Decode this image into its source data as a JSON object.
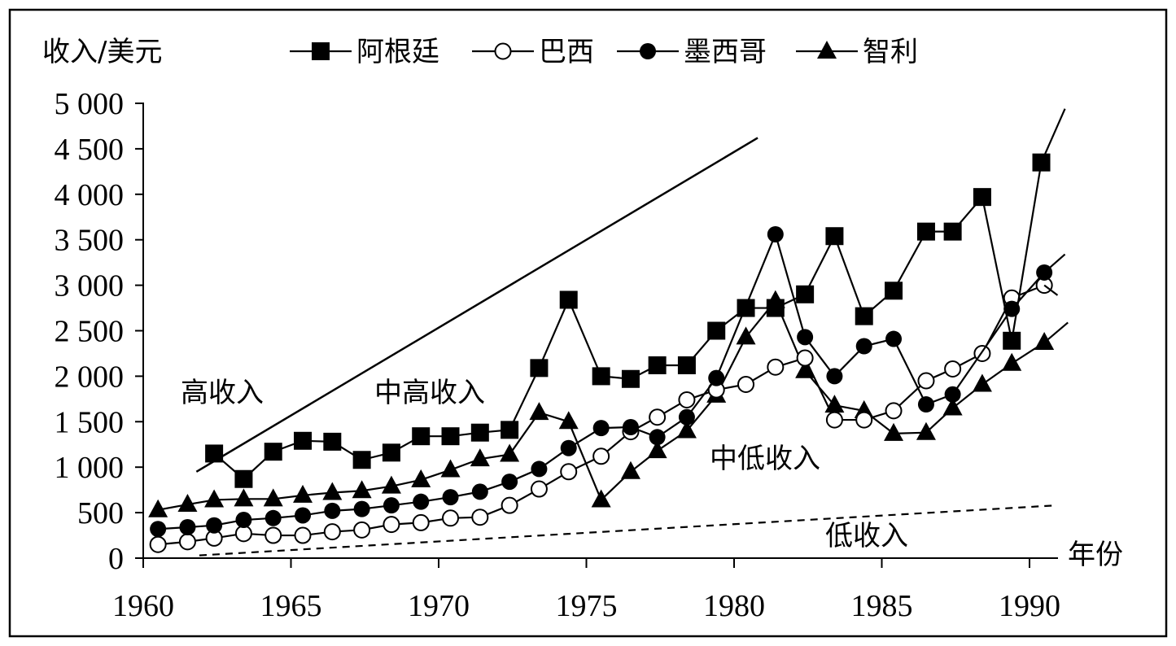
{
  "chart_data": {
    "type": "line",
    "ylabel": "收入/美元",
    "xlabel": "年份",
    "x_ticks": [
      1960,
      1965,
      1970,
      1975,
      1980,
      1985,
      1990
    ],
    "y_ticks": [
      "0",
      "500",
      "1 000",
      "1 500",
      "2 000",
      "2 500",
      "3 000",
      "3 500",
      "4 000",
      "4 500",
      "5 000"
    ],
    "xlim": [
      1960,
      1991.5
    ],
    "ylim": [
      0,
      5000
    ],
    "grid": false,
    "legend_position": "top",
    "series": [
      {
        "name": "阿根廷",
        "marker": "filled-square",
        "x": [
          1962.4,
          1963.4,
          1964.4,
          1965.4,
          1966.4,
          1967.4,
          1968.4,
          1969.4,
          1970.4,
          1971.4,
          1972.4,
          1973.4,
          1974.4,
          1975.5,
          1976.5,
          1977.4,
          1978.4,
          1979.4,
          1980.4,
          1981.4,
          1982.4,
          1983.4,
          1984.4,
          1985.4,
          1986.5,
          1987.4,
          1988.4,
          1989.4,
          1990.4
        ],
        "y": [
          1150,
          870,
          1170,
          1290,
          1280,
          1080,
          1160,
          1340,
          1340,
          1380,
          1410,
          2090,
          2840,
          2000,
          1970,
          2120,
          2120,
          2500,
          2750,
          2750,
          2900,
          3540,
          2660,
          2940,
          3590,
          3590,
          3970,
          2390,
          4350
        ]
      },
      {
        "name": "巴西",
        "marker": "open-circle",
        "x": [
          1960.5,
          1961.5,
          1962.4,
          1963.4,
          1964.4,
          1965.4,
          1966.4,
          1967.4,
          1968.4,
          1969.4,
          1970.4,
          1971.4,
          1972.4,
          1973.4,
          1974.4,
          1975.5,
          1976.5,
          1977.4,
          1978.4,
          1979.4,
          1980.4,
          1981.4,
          1982.4,
          1983.4,
          1984.4,
          1985.4,
          1986.5,
          1987.4,
          1988.4,
          1989.4,
          1990.5
        ],
        "y": [
          150,
          180,
          220,
          270,
          250,
          250,
          290,
          310,
          370,
          390,
          440,
          450,
          580,
          760,
          950,
          1120,
          1390,
          1550,
          1740,
          1850,
          1910,
          2100,
          2200,
          1520,
          1520,
          1620,
          1950,
          2080,
          2250,
          2860,
          3000
        ]
      },
      {
        "name": "墨西哥",
        "marker": "filled-circle",
        "x": [
          1960.5,
          1961.5,
          1962.4,
          1963.4,
          1964.4,
          1965.4,
          1966.4,
          1967.4,
          1968.4,
          1969.4,
          1970.4,
          1971.4,
          1972.4,
          1973.4,
          1974.4,
          1975.5,
          1976.5,
          1977.4,
          1978.4,
          1979.4,
          1981.4,
          1982.4,
          1983.4,
          1984.4,
          1985.4,
          1986.5,
          1987.4,
          1989.4,
          1990.5
        ],
        "y": [
          320,
          340,
          360,
          420,
          440,
          470,
          520,
          540,
          580,
          620,
          670,
          730,
          840,
          980,
          1210,
          1430,
          1440,
          1330,
          1550,
          1980,
          3560,
          2430,
          2000,
          2330,
          2410,
          1690,
          1800,
          2740,
          3140
        ]
      },
      {
        "name": "智利",
        "marker": "filled-triangle",
        "x": [
          1960.5,
          1961.5,
          1962.4,
          1963.4,
          1964.4,
          1965.4,
          1966.4,
          1967.4,
          1968.4,
          1969.4,
          1970.4,
          1971.4,
          1972.4,
          1973.4,
          1974.4,
          1975.5,
          1976.5,
          1977.4,
          1978.4,
          1979.4,
          1980.4,
          1981.4,
          1982.4,
          1983.4,
          1984.4,
          1985.4,
          1986.5,
          1987.4,
          1988.4,
          1989.4,
          1990.5
        ],
        "y": [
          530,
          590,
          640,
          650,
          650,
          690,
          720,
          740,
          790,
          860,
          970,
          1090,
          1140,
          1600,
          1500,
          640,
          950,
          1180,
          1400,
          1790,
          2430,
          2830,
          2060,
          1680,
          1620,
          1370,
          1380,
          1650,
          1910,
          2140,
          2370
        ]
      }
    ],
    "annotations": {
      "high_income": "高收入",
      "upper_middle_income": "中高收入",
      "lower_middle_income": "中低收入",
      "low_income": "低收入"
    },
    "boundary_lines": [
      {
        "name": "high-income-boundary",
        "style": "solid",
        "x": [
          1961.8,
          1980.8
        ],
        "y": [
          950,
          4620
        ]
      },
      {
        "name": "low-income-boundary",
        "style": "dashed",
        "x": [
          1961.9,
          1990.9
        ],
        "y": [
          30,
          580
        ]
      }
    ]
  }
}
